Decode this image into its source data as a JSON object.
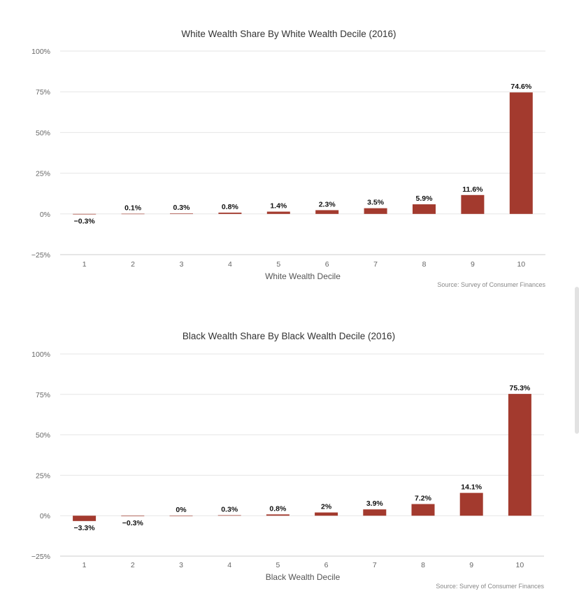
{
  "chart_data": [
    {
      "type": "bar",
      "title": "White Wealth Share By White Wealth Decile (2016)",
      "xlabel": "White Wealth Decile",
      "ylabel": "",
      "categories": [
        "1",
        "2",
        "3",
        "4",
        "5",
        "6",
        "7",
        "8",
        "9",
        "10"
      ],
      "values": [
        -0.3,
        0.1,
        0.3,
        0.8,
        1.4,
        2.3,
        3.5,
        5.9,
        11.6,
        74.6
      ],
      "data_labels": [
        "−0.3%",
        "0.1%",
        "0.3%",
        "0.8%",
        "1.4%",
        "2.3%",
        "3.5%",
        "5.9%",
        "11.6%",
        "74.6%"
      ],
      "yticks": [
        -25,
        0,
        25,
        50,
        75,
        100
      ],
      "ytick_labels": [
        "−25%",
        "0%",
        "25%",
        "50%",
        "75%",
        "100%"
      ],
      "ylim": [
        -25,
        100
      ],
      "grid": true,
      "bar_color": "#a33a2e",
      "source": "Source: Survey of Consumer Finances"
    },
    {
      "type": "bar",
      "title": "Black Wealth Share By Black Wealth Decile (2016)",
      "xlabel": "Black Wealth Decile",
      "ylabel": "",
      "categories": [
        "1",
        "2",
        "3",
        "4",
        "5",
        "6",
        "7",
        "8",
        "9",
        "10"
      ],
      "values": [
        -3.3,
        -0.3,
        0,
        0.3,
        0.8,
        2,
        3.9,
        7.2,
        14.1,
        75.3
      ],
      "data_labels": [
        "−3.3%",
        "−0.3%",
        "0%",
        "0.3%",
        "0.8%",
        "2%",
        "3.9%",
        "7.2%",
        "14.1%",
        "75.3%"
      ],
      "yticks": [
        -25,
        0,
        25,
        50,
        75,
        100
      ],
      "ytick_labels": [
        "−25%",
        "0%",
        "25%",
        "50%",
        "75%",
        "100%"
      ],
      "ylim": [
        -25,
        100
      ],
      "grid": true,
      "bar_color": "#a33a2e",
      "source": "Source: Survey of Consumer Finances"
    }
  ]
}
